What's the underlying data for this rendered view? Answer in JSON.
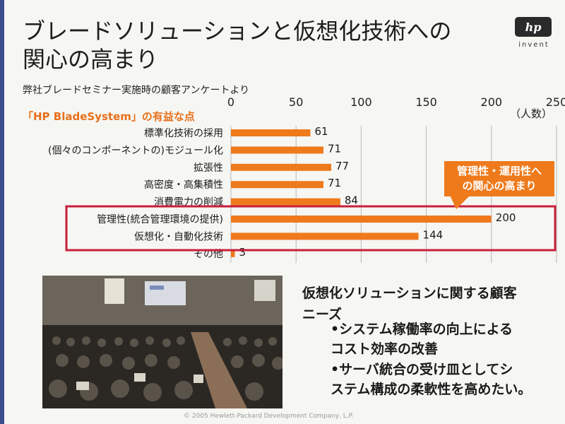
{
  "slide": {
    "title_line1": "ブレードソリューションと仮想化技術への",
    "title_line2": "関心の高まり",
    "subtitle": "弊社ブレードセミナー実施時の顧客アンケートより",
    "section_label": "「HP BladeSystem」の有益な点",
    "logo_text": "hp",
    "logo_tagline": "invent",
    "callout_line1": "管理性・運用性へ",
    "callout_line2": "の関心の高まり",
    "needs_title_line1": "仮想化ソリューションに関する顧客",
    "needs_title_line2": "ニーズ",
    "needs": [
      {
        "line1": "•システム稼働率の向上による",
        "line2": "コスト効率の改善"
      },
      {
        "line1": "•サーバ統合の受け皿としてシ",
        "line2": "ステム構成の柔軟性を高めたい。"
      }
    ],
    "footer": "© 2005 Hewlett-Packard Development Company, L.P."
  },
  "colors": {
    "bar": "#ee7a1c",
    "accent": "#e8701a",
    "highlight_border": "#c8203a",
    "hp_blue": "#3b4f8f"
  },
  "chart_data": {
    "type": "bar",
    "orientation": "horizontal",
    "unit_label": "（人数）",
    "xlim": [
      0,
      250
    ],
    "xticks": [
      0,
      50,
      100,
      150,
      200,
      250
    ],
    "grid": true,
    "categories": [
      "標準化技術の採用",
      "(個々のコンポーネントの)モジュール化",
      "拡張性",
      "高密度・高集積性",
      "消費電力の削減",
      "管理性(統合管理環境の提供)",
      "仮想化・自動化技術",
      "その他"
    ],
    "values": [
      61,
      71,
      77,
      71,
      84,
      200,
      144,
      3
    ],
    "highlighted": [
      "管理性(統合管理環境の提供)",
      "仮想化・自動化技術"
    ]
  }
}
